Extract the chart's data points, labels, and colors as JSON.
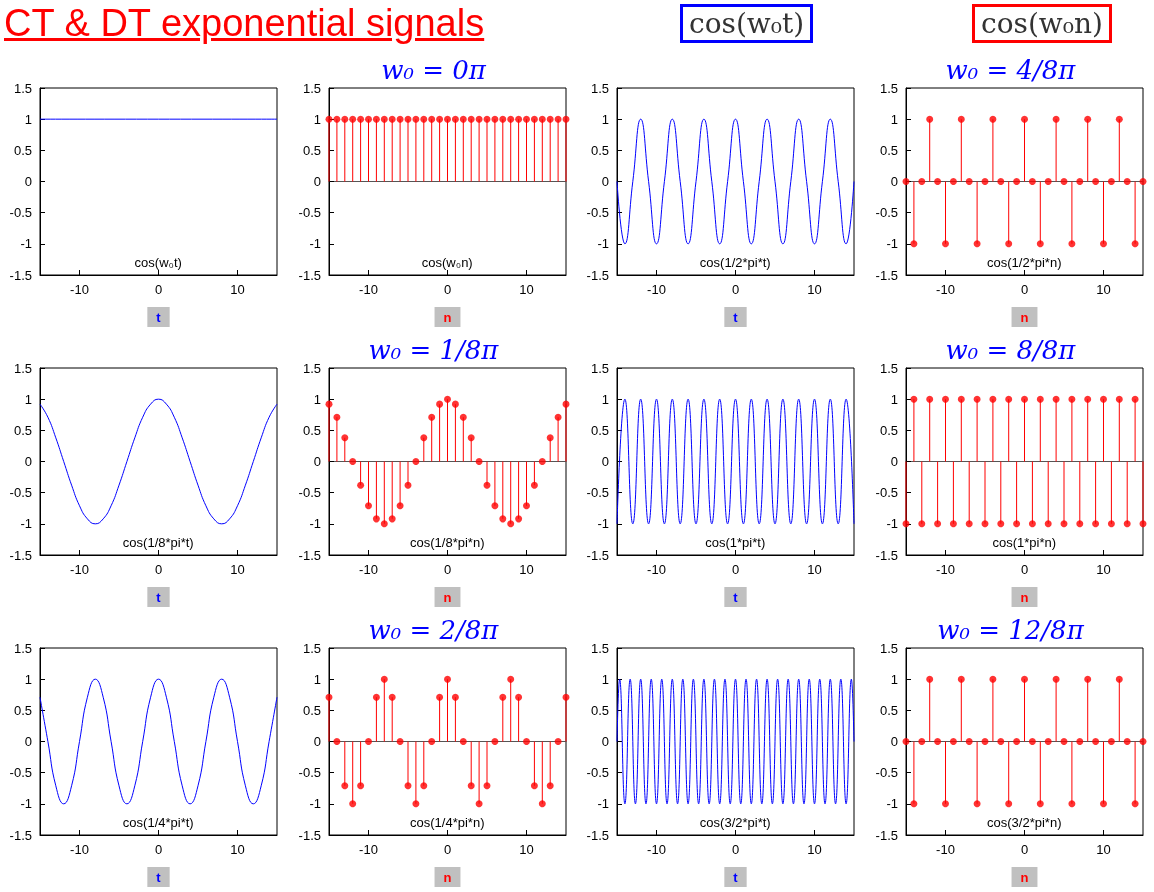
{
  "chart_data": [
    {
      "type": "other",
      "title": "CT & DT exponential signals",
      "annotations": [
        "cos(w₀t)",
        "cos(w₀n)"
      ]
    },
    {
      "type": "line",
      "x": [
        -15,
        15
      ],
      "values": [
        1,
        1
      ],
      "color": "#0000ff",
      "marker": "none",
      "xlim": [
        -15,
        15
      ],
      "ylim": [
        -1.5,
        1.5
      ],
      "xticks": [
        -10,
        0,
        10
      ],
      "yticks": [
        -1.5,
        -1,
        -0.5,
        0,
        0.5,
        1,
        1.5
      ],
      "xlabel": "t",
      "annotations": [
        "cos(w₀t)"
      ]
    },
    {
      "type": "lollipop",
      "title": "w₀ = 0π",
      "x": [
        -15,
        -14,
        -13,
        -12,
        -11,
        -10,
        -9,
        -8,
        -7,
        -6,
        -5,
        -4,
        -3,
        -2,
        -1,
        0,
        1,
        2,
        3,
        4,
        5,
        6,
        7,
        8,
        9,
        10,
        11,
        12,
        13,
        14,
        15
      ],
      "values": [
        1,
        1,
        1,
        1,
        1,
        1,
        1,
        1,
        1,
        1,
        1,
        1,
        1,
        1,
        1,
        1,
        1,
        1,
        1,
        1,
        1,
        1,
        1,
        1,
        1,
        1,
        1,
        1,
        1,
        1,
        1
      ],
      "color": "#ff0000",
      "marker": "circle",
      "xlim": [
        -15,
        15
      ],
      "ylim": [
        -1.5,
        1.5
      ],
      "xticks": [
        -10,
        0,
        10
      ],
      "yticks": [
        -1.5,
        -1,
        -0.5,
        0,
        0.5,
        1,
        1.5
      ],
      "xlabel": "n",
      "annotations": [
        "cos(w₀n)"
      ]
    },
    {
      "type": "line",
      "x": [
        -15,
        -14,
        -13,
        -12,
        -11,
        -10,
        -9,
        -8,
        -7,
        -6,
        -5,
        -4,
        -3,
        -2,
        -1,
        0,
        1,
        2,
        3,
        4,
        5,
        6,
        7,
        8,
        9,
        10,
        11,
        12,
        13,
        14,
        15
      ],
      "values": [
        0,
        -1,
        0,
        1,
        0,
        -1,
        0,
        1,
        0,
        -1,
        0,
        1,
        0,
        -1,
        0,
        1,
        0,
        -1,
        0,
        1,
        0,
        -1,
        0,
        1,
        0,
        -1,
        0,
        1,
        0,
        -1,
        0
      ],
      "color": "#0000ff",
      "marker": "none",
      "xlim": [
        -15,
        15
      ],
      "ylim": [
        -1.5,
        1.5
      ],
      "xticks": [
        -10,
        0,
        10
      ],
      "yticks": [
        -1.5,
        -1,
        -0.5,
        0,
        0.5,
        1,
        1.5
      ],
      "xlabel": "t",
      "annotations": [
        "cos(1/2*pi*t)"
      ]
    },
    {
      "type": "lollipop",
      "title": "w₀ = 4/8π",
      "x": [
        -15,
        -14,
        -13,
        -12,
        -11,
        -10,
        -9,
        -8,
        -7,
        -6,
        -5,
        -4,
        -3,
        -2,
        -1,
        0,
        1,
        2,
        3,
        4,
        5,
        6,
        7,
        8,
        9,
        10,
        11,
        12,
        13,
        14,
        15
      ],
      "values": [
        0,
        -1,
        0,
        1,
        0,
        -1,
        0,
        1,
        0,
        -1,
        0,
        1,
        0,
        -1,
        0,
        1,
        0,
        -1,
        0,
        1,
        0,
        -1,
        0,
        1,
        0,
        -1,
        0,
        1,
        0,
        -1,
        0
      ],
      "color": "#ff0000",
      "marker": "circle",
      "xlim": [
        -15,
        15
      ],
      "ylim": [
        -1.5,
        1.5
      ],
      "xticks": [
        -10,
        0,
        10
      ],
      "yticks": [
        -1.5,
        -1,
        -0.5,
        0,
        0.5,
        1,
        1.5
      ],
      "xlabel": "n",
      "annotations": [
        "cos(1/2*pi*n)"
      ]
    },
    {
      "type": "line",
      "x": [
        -15,
        -14,
        -13,
        -12,
        -11,
        -10,
        -9,
        -8,
        -7,
        -6,
        -5,
        -4,
        -3,
        -2,
        -1,
        0,
        1,
        2,
        3,
        4,
        5,
        6,
        7,
        8,
        9,
        10,
        11,
        12,
        13,
        14,
        15
      ],
      "values": [
        0.92,
        0.71,
        0.38,
        0,
        -0.38,
        -0.71,
        -0.92,
        -1,
        -0.92,
        -0.71,
        -0.38,
        0,
        0.38,
        0.71,
        0.92,
        1,
        0.92,
        0.71,
        0.38,
        0,
        -0.38,
        -0.71,
        -0.92,
        -1,
        -0.92,
        -0.71,
        -0.38,
        0,
        0.38,
        0.71,
        0.92
      ],
      "color": "#0000ff",
      "marker": "none",
      "xlim": [
        -15,
        15
      ],
      "ylim": [
        -1.5,
        1.5
      ],
      "xticks": [
        -10,
        0,
        10
      ],
      "yticks": [
        -1.5,
        -1,
        -0.5,
        0,
        0.5,
        1,
        1.5
      ],
      "xlabel": "t",
      "annotations": [
        "cos(1/8*pi*t)"
      ]
    },
    {
      "type": "lollipop",
      "title": "w₀ = 1/8π",
      "x": [
        -15,
        -14,
        -13,
        -12,
        -11,
        -10,
        -9,
        -8,
        -7,
        -6,
        -5,
        -4,
        -3,
        -2,
        -1,
        0,
        1,
        2,
        3,
        4,
        5,
        6,
        7,
        8,
        9,
        10,
        11,
        12,
        13,
        14,
        15
      ],
      "values": [
        0.92,
        0.71,
        0.38,
        0,
        -0.38,
        -0.71,
        -0.92,
        -1,
        -0.92,
        -0.71,
        -0.38,
        0,
        0.38,
        0.71,
        0.92,
        1,
        0.92,
        0.71,
        0.38,
        0,
        -0.38,
        -0.71,
        -0.92,
        -1,
        -0.92,
        -0.71,
        -0.38,
        0,
        0.38,
        0.71,
        0.92
      ],
      "color": "#ff0000",
      "marker": "circle",
      "xlim": [
        -15,
        15
      ],
      "ylim": [
        -1.5,
        1.5
      ],
      "xticks": [
        -10,
        0,
        10
      ],
      "yticks": [
        -1.5,
        -1,
        -0.5,
        0,
        0.5,
        1,
        1.5
      ],
      "xlabel": "n",
      "annotations": [
        "cos(1/8*pi*n)"
      ]
    },
    {
      "type": "line",
      "x": [
        -15,
        -14,
        -13,
        -12,
        -11,
        -10,
        -9,
        -8,
        -7,
        -6,
        -5,
        -4,
        -3,
        -2,
        -1,
        0,
        1,
        2,
        3,
        4,
        5,
        6,
        7,
        8,
        9,
        10,
        11,
        12,
        13,
        14,
        15
      ],
      "values": [
        -1,
        1,
        -1,
        1,
        -1,
        1,
        -1,
        1,
        -1,
        1,
        -1,
        1,
        -1,
        1,
        -1,
        1,
        -1,
        1,
        -1,
        1,
        -1,
        1,
        -1,
        1,
        -1,
        1,
        -1,
        1,
        -1,
        1,
        -1
      ],
      "color": "#0000ff",
      "marker": "none",
      "xlim": [
        -15,
        15
      ],
      "ylim": [
        -1.5,
        1.5
      ],
      "xticks": [
        -10,
        0,
        10
      ],
      "yticks": [
        -1.5,
        -1,
        -0.5,
        0,
        0.5,
        1,
        1.5
      ],
      "xlabel": "t",
      "annotations": [
        "cos(1*pi*t)"
      ]
    },
    {
      "type": "lollipop",
      "title": "w₀ = 8/8π",
      "x": [
        -15,
        -14,
        -13,
        -12,
        -11,
        -10,
        -9,
        -8,
        -7,
        -6,
        -5,
        -4,
        -3,
        -2,
        -1,
        0,
        1,
        2,
        3,
        4,
        5,
        6,
        7,
        8,
        9,
        10,
        11,
        12,
        13,
        14,
        15
      ],
      "values": [
        -1,
        1,
        -1,
        1,
        -1,
        1,
        -1,
        1,
        -1,
        1,
        -1,
        1,
        -1,
        1,
        -1,
        1,
        -1,
        1,
        -1,
        1,
        -1,
        1,
        -1,
        1,
        -1,
        1,
        -1,
        1,
        -1,
        1,
        -1
      ],
      "color": "#ff0000",
      "marker": "circle",
      "xlim": [
        -15,
        15
      ],
      "ylim": [
        -1.5,
        1.5
      ],
      "xticks": [
        -10,
        0,
        10
      ],
      "yticks": [
        -1.5,
        -1,
        -0.5,
        0,
        0.5,
        1,
        1.5
      ],
      "xlabel": "n",
      "annotations": [
        "cos(1*pi*n)"
      ]
    },
    {
      "type": "line",
      "x": [
        -15,
        -14,
        -13,
        -12,
        -11,
        -10,
        -9,
        -8,
        -7,
        -6,
        -5,
        -4,
        -3,
        -2,
        -1,
        0,
        1,
        2,
        3,
        4,
        5,
        6,
        7,
        8,
        9,
        10,
        11,
        12,
        13,
        14,
        15
      ],
      "values": [
        0.71,
        0,
        -0.71,
        -1,
        -0.71,
        0,
        0.71,
        1,
        0.71,
        0,
        -0.71,
        -1,
        -0.71,
        0,
        0.71,
        1,
        0.71,
        0,
        -0.71,
        -1,
        -0.71,
        0,
        0.71,
        1,
        0.71,
        0,
        -0.71,
        -1,
        -0.71,
        0,
        0.71
      ],
      "color": "#0000ff",
      "marker": "none",
      "xlim": [
        -15,
        15
      ],
      "ylim": [
        -1.5,
        1.5
      ],
      "xticks": [
        -10,
        0,
        10
      ],
      "yticks": [
        -1.5,
        -1,
        -0.5,
        0,
        0.5,
        1,
        1.5
      ],
      "xlabel": "t",
      "annotations": [
        "cos(1/4*pi*t)"
      ]
    },
    {
      "type": "lollipop",
      "title": "w₀ = 2/8π",
      "x": [
        -15,
        -14,
        -13,
        -12,
        -11,
        -10,
        -9,
        -8,
        -7,
        -6,
        -5,
        -4,
        -3,
        -2,
        -1,
        0,
        1,
        2,
        3,
        4,
        5,
        6,
        7,
        8,
        9,
        10,
        11,
        12,
        13,
        14,
        15
      ],
      "values": [
        0.71,
        0,
        -0.71,
        -1,
        -0.71,
        0,
        0.71,
        1,
        0.71,
        0,
        -0.71,
        -1,
        -0.71,
        0,
        0.71,
        1,
        0.71,
        0,
        -0.71,
        -1,
        -0.71,
        0,
        0.71,
        1,
        0.71,
        0,
        -0.71,
        -1,
        -0.71,
        0,
        0.71
      ],
      "color": "#ff0000",
      "marker": "circle",
      "xlim": [
        -15,
        15
      ],
      "ylim": [
        -1.5,
        1.5
      ],
      "xticks": [
        -10,
        0,
        10
      ],
      "yticks": [
        -1.5,
        -1,
        -0.5,
        0,
        0.5,
        1,
        1.5
      ],
      "xlabel": "n",
      "annotations": [
        "cos(1/4*pi*n)"
      ]
    },
    {
      "type": "line",
      "x": [
        -15,
        -14.667,
        -14,
        -13.333,
        -12.667,
        -12,
        -11.333,
        -10.667,
        -10,
        -9.333,
        -8.667,
        -8,
        -7.333,
        -6.667,
        -6,
        -5.333,
        -4.667,
        -4,
        -3.333,
        -2.667,
        -2,
        -1.333,
        -0.667,
        0,
        0.667,
        1.333,
        2,
        2.667,
        3.333,
        4,
        4.667,
        5.333,
        6,
        6.667,
        7.333,
        8,
        8.667,
        9.333,
        10,
        10.667,
        11.333,
        12,
        12.667,
        13.333,
        14,
        14.667,
        15
      ],
      "values": [
        0,
        1,
        -1,
        1,
        -1,
        1,
        -1,
        1,
        -1,
        1,
        -1,
        1,
        -1,
        1,
        -1,
        1,
        -1,
        1,
        -1,
        1,
        -1,
        1,
        -1,
        1,
        -1,
        1,
        -1,
        1,
        -1,
        1,
        -1,
        1,
        -1,
        1,
        -1,
        1,
        -1,
        1,
        -1,
        1,
        -1,
        1,
        -1,
        1,
        -1,
        1,
        0
      ],
      "color": "#0000ff",
      "marker": "none",
      "xlim": [
        -15,
        15
      ],
      "ylim": [
        -1.5,
        1.5
      ],
      "xticks": [
        -10,
        0,
        10
      ],
      "yticks": [
        -1.5,
        -1,
        -0.5,
        0,
        0.5,
        1,
        1.5
      ],
      "xlabel": "t",
      "annotations": [
        "cos(3/2*pi*t)"
      ]
    },
    {
      "type": "lollipop",
      "title": "w₀ = 12/8π",
      "x": [
        -15,
        -14,
        -13,
        -12,
        -11,
        -10,
        -9,
        -8,
        -7,
        -6,
        -5,
        -4,
        -3,
        -2,
        -1,
        0,
        1,
        2,
        3,
        4,
        5,
        6,
        7,
        8,
        9,
        10,
        11,
        12,
        13,
        14,
        15
      ],
      "values": [
        0,
        -1,
        0,
        1,
        0,
        -1,
        0,
        1,
        0,
        -1,
        0,
        1,
        0,
        -1,
        0,
        1,
        0,
        -1,
        0,
        1,
        0,
        -1,
        0,
        1,
        0,
        -1,
        0,
        1,
        0,
        -1,
        0
      ],
      "color": "#ff0000",
      "marker": "circle",
      "xlim": [
        -15,
        15
      ],
      "ylim": [
        -1.5,
        1.5
      ],
      "xticks": [
        -10,
        0,
        10
      ],
      "yticks": [
        -1.5,
        -1,
        -0.5,
        0,
        0.5,
        1,
        1.5
      ],
      "xlabel": "n",
      "annotations": [
        "cos(3/2*pi*n)"
      ]
    }
  ]
}
